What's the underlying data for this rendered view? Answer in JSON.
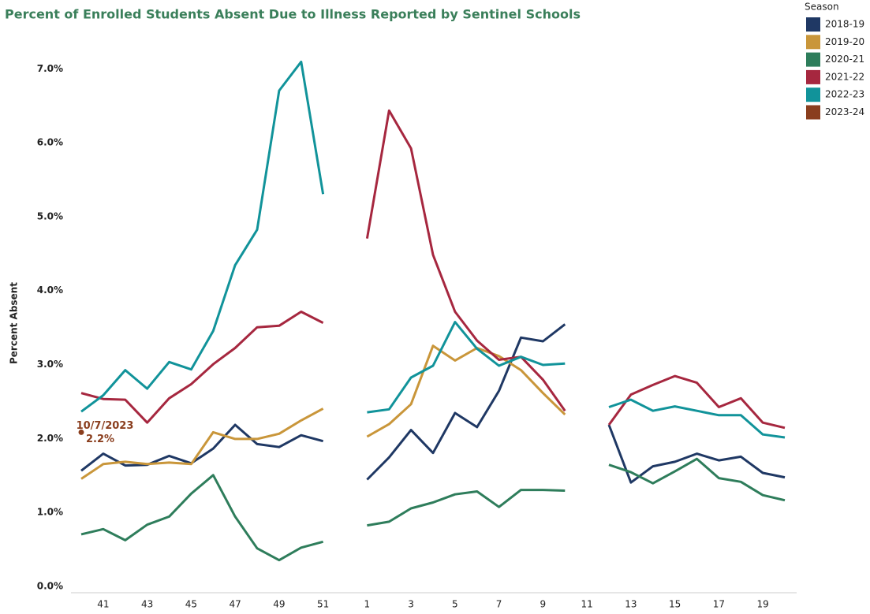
{
  "chart_data": {
    "type": "line",
    "title": "Percent of Enrolled Students Absent Due to Illness Reported by Sentinel Schools",
    "y_label": "Percent Absent",
    "legend_title": "Season",
    "legend_position": "top-right",
    "grid": false,
    "categories": [
      null,
      "41",
      null,
      "43",
      null,
      "45",
      null,
      "47",
      null,
      "49",
      null,
      "51",
      null,
      "1",
      null,
      "3",
      null,
      "5",
      null,
      "7",
      null,
      "9",
      null,
      "11",
      null,
      "13",
      null,
      "15",
      null,
      "17",
      null,
      "19",
      null
    ],
    "ylim": [
      0,
      7.6
    ],
    "yticks": [
      {
        "value": 0,
        "label": "0.0%"
      },
      {
        "value": 1,
        "label": "1.0%"
      },
      {
        "value": 2,
        "label": "2.0%"
      },
      {
        "value": 3,
        "label": "3.0%"
      },
      {
        "value": 4,
        "label": "4.0%"
      },
      {
        "value": 5,
        "label": "5.0%"
      },
      {
        "value": 6,
        "label": "6.0%"
      },
      {
        "value": 7,
        "label": "7.0%"
      }
    ],
    "annotation": "10/7/2023",
    "series": [
      {
        "name": "2018-19",
        "color": "#1f3864",
        "values": [
          1.65,
          1.88,
          1.72,
          1.73,
          1.85,
          1.75,
          1.95,
          2.27,
          2.01,
          1.97,
          2.13,
          2.05,
          null,
          1.53,
          1.83,
          2.2,
          1.89,
          2.43,
          2.24,
          2.73,
          3.45,
          3.4,
          3.63,
          null,
          2.27,
          1.49,
          1.71,
          1.77,
          1.88,
          1.79,
          1.84,
          1.62,
          1.56
        ]
      },
      {
        "name": "2019-20",
        "color": "#c9963a",
        "values": [
          1.54,
          1.74,
          1.77,
          1.74,
          1.76,
          1.74,
          2.17,
          2.08,
          2.08,
          2.15,
          2.33,
          2.49,
          null,
          2.11,
          2.28,
          2.55,
          3.34,
          3.14,
          3.31,
          3.2,
          3.01,
          2.7,
          2.41,
          null,
          null,
          null,
          null,
          null,
          null,
          null,
          null,
          null,
          null
        ]
      },
      {
        "name": "2020-21",
        "color": "#2e7d5b",
        "values": [
          0.79,
          0.86,
          0.71,
          0.92,
          1.03,
          1.34,
          1.59,
          1.03,
          0.6,
          0.44,
          0.61,
          0.69,
          null,
          0.91,
          0.96,
          1.14,
          1.22,
          1.33,
          1.37,
          1.16,
          1.39,
          1.39,
          1.38,
          null,
          1.73,
          1.63,
          1.48,
          1.64,
          1.81,
          1.55,
          1.5,
          1.32,
          1.25
        ]
      },
      {
        "name": "2021-22",
        "color": "#a6273f",
        "values": [
          2.7,
          2.62,
          2.61,
          2.3,
          2.63,
          2.82,
          3.09,
          3.31,
          3.59,
          3.61,
          3.8,
          3.65,
          null,
          4.79,
          6.52,
          6.01,
          4.57,
          3.8,
          3.41,
          3.15,
          3.19,
          2.88,
          2.46,
          null,
          2.27,
          2.68,
          2.81,
          2.93,
          2.84,
          2.51,
          2.63,
          2.3,
          2.23
        ]
      },
      {
        "name": "2022-23",
        "color": "#11939a",
        "values": [
          2.45,
          2.67,
          3.01,
          2.76,
          3.12,
          3.02,
          3.54,
          4.43,
          4.91,
          6.79,
          7.18,
          5.39,
          null,
          2.44,
          2.48,
          2.91,
          3.07,
          3.66,
          3.3,
          3.07,
          3.19,
          3.08,
          3.1,
          null,
          2.51,
          2.61,
          2.46,
          2.52,
          2.46,
          2.4,
          2.4,
          2.14,
          2.1
        ]
      },
      {
        "name": "2023-24",
        "color": "#8a3e1e",
        "values": [
          2.17,
          null,
          null,
          null,
          null,
          null,
          null,
          null,
          null,
          null,
          null,
          null,
          null,
          null,
          null,
          null,
          null,
          null,
          null,
          null,
          null,
          null,
          null,
          null,
          null,
          null,
          null,
          null,
          null,
          null,
          null,
          null,
          null
        ],
        "value_labels": [
          "2.2%",
          null,
          null,
          null,
          null,
          null,
          null,
          null,
          null,
          null,
          null,
          null,
          null,
          null,
          null,
          null,
          null,
          null,
          null,
          null,
          null,
          null,
          null,
          null,
          null,
          null,
          null,
          null,
          null,
          null,
          null,
          null,
          null
        ]
      }
    ]
  }
}
